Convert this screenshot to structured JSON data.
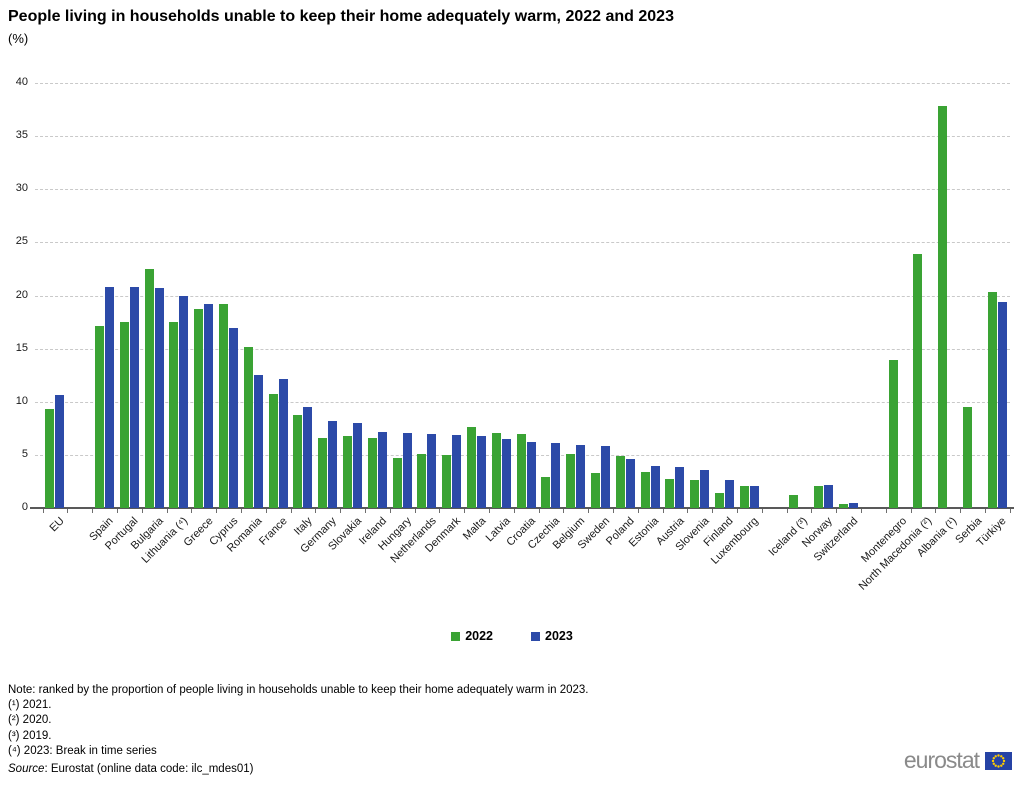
{
  "title": "People living in households unable to keep their home adequately warm, 2022 and 2023",
  "subtitle": "(%)",
  "legend": {
    "items": [
      {
        "label": "2022",
        "color": "#3aa334"
      },
      {
        "label": "2023",
        "color": "#2c4aa8"
      }
    ]
  },
  "chart_data": {
    "type": "bar",
    "title": "People living in households unable to keep their home adequately warm, 2022 and 2023",
    "xlabel": "",
    "ylabel": "(%)",
    "ylim": [
      0,
      40
    ],
    "yticks": [
      0,
      5,
      10,
      15,
      20,
      25,
      30,
      35,
      40
    ],
    "grid": "horizontal-dashed",
    "legend_position": "bottom-center",
    "series": [
      {
        "name": "2022",
        "color": "#3aa334"
      },
      {
        "name": "2023",
        "color": "#2c4aa8"
      }
    ],
    "countries": [
      {
        "label": "EU",
        "y2022": 9.3,
        "y2023": 10.6
      },
      {
        "label": "Spain",
        "y2022": 17.1,
        "y2023": 20.8,
        "gap_before": true
      },
      {
        "label": "Portugal",
        "y2022": 17.5,
        "y2023": 20.8
      },
      {
        "label": "Bulgaria",
        "y2022": 22.5,
        "y2023": 20.7
      },
      {
        "label": "Lithuania (⁴)",
        "y2022": 17.5,
        "y2023": 20.0
      },
      {
        "label": "Greece",
        "y2022": 18.7,
        "y2023": 19.2
      },
      {
        "label": "Cyprus",
        "y2022": 19.2,
        "y2023": 16.9
      },
      {
        "label": "Romania",
        "y2022": 15.2,
        "y2023": 12.5
      },
      {
        "label": "France",
        "y2022": 10.7,
        "y2023": 12.1
      },
      {
        "label": "Italy",
        "y2022": 8.8,
        "y2023": 9.5
      },
      {
        "label": "Germany",
        "y2022": 6.6,
        "y2023": 8.2
      },
      {
        "label": "Slovakia",
        "y2022": 6.8,
        "y2023": 8.0
      },
      {
        "label": "Ireland",
        "y2022": 6.6,
        "y2023": 7.2
      },
      {
        "label": "Hungary",
        "y2022": 4.7,
        "y2023": 7.1
      },
      {
        "label": "Netherlands",
        "y2022": 5.1,
        "y2023": 7.0
      },
      {
        "label": "Denmark",
        "y2022": 5.0,
        "y2023": 6.9
      },
      {
        "label": "Malta",
        "y2022": 7.6,
        "y2023": 6.8
      },
      {
        "label": "Latvia",
        "y2022": 7.1,
        "y2023": 6.5
      },
      {
        "label": "Croatia",
        "y2022": 7.0,
        "y2023": 6.2
      },
      {
        "label": "Czechia",
        "y2022": 2.9,
        "y2023": 6.1
      },
      {
        "label": "Belgium",
        "y2022": 5.1,
        "y2023": 5.9
      },
      {
        "label": "Sweden",
        "y2022": 3.3,
        "y2023": 5.8
      },
      {
        "label": "Poland",
        "y2022": 4.9,
        "y2023": 4.6
      },
      {
        "label": "Estonia",
        "y2022": 3.4,
        "y2023": 4.0
      },
      {
        "label": "Austria",
        "y2022": 2.7,
        "y2023": 3.9
      },
      {
        "label": "Slovenia",
        "y2022": 2.6,
        "y2023": 3.6
      },
      {
        "label": "Finland",
        "y2022": 1.4,
        "y2023": 2.6
      },
      {
        "label": "Luxembourg",
        "y2022": 2.1,
        "y2023": 2.1
      },
      {
        "label": "Iceland (³)",
        "y2022": 1.2,
        "y2023": null,
        "gap_before": true
      },
      {
        "label": "Norway",
        "y2022": 2.1,
        "y2023": 2.2
      },
      {
        "label": "Switzerland",
        "y2022": 0.4,
        "y2023": 0.5
      },
      {
        "label": "Montenegro",
        "y2022": 13.9,
        "y2023": null,
        "gap_before": true
      },
      {
        "label": "North Macedonia (²)",
        "y2022": 23.9,
        "y2023": null
      },
      {
        "label": "Albania (¹)",
        "y2022": 37.8,
        "y2023": null
      },
      {
        "label": "Serbia",
        "y2022": 9.5,
        "y2023": null
      },
      {
        "label": "Türkiye",
        "y2022": 20.3,
        "y2023": 19.4
      }
    ]
  },
  "notes": [
    "Note: ranked by the proportion of people living in households unable to keep their home adequately warm in 2023.",
    "(¹) 2021.",
    "(²) 2020.",
    "(³) 2019.",
    "(⁴) 2023: Break in time series"
  ],
  "source": {
    "label": "Source",
    "rest": ": Eurostat (online data code: ilc_mdes01)"
  },
  "logo": {
    "text": "eurostat"
  }
}
